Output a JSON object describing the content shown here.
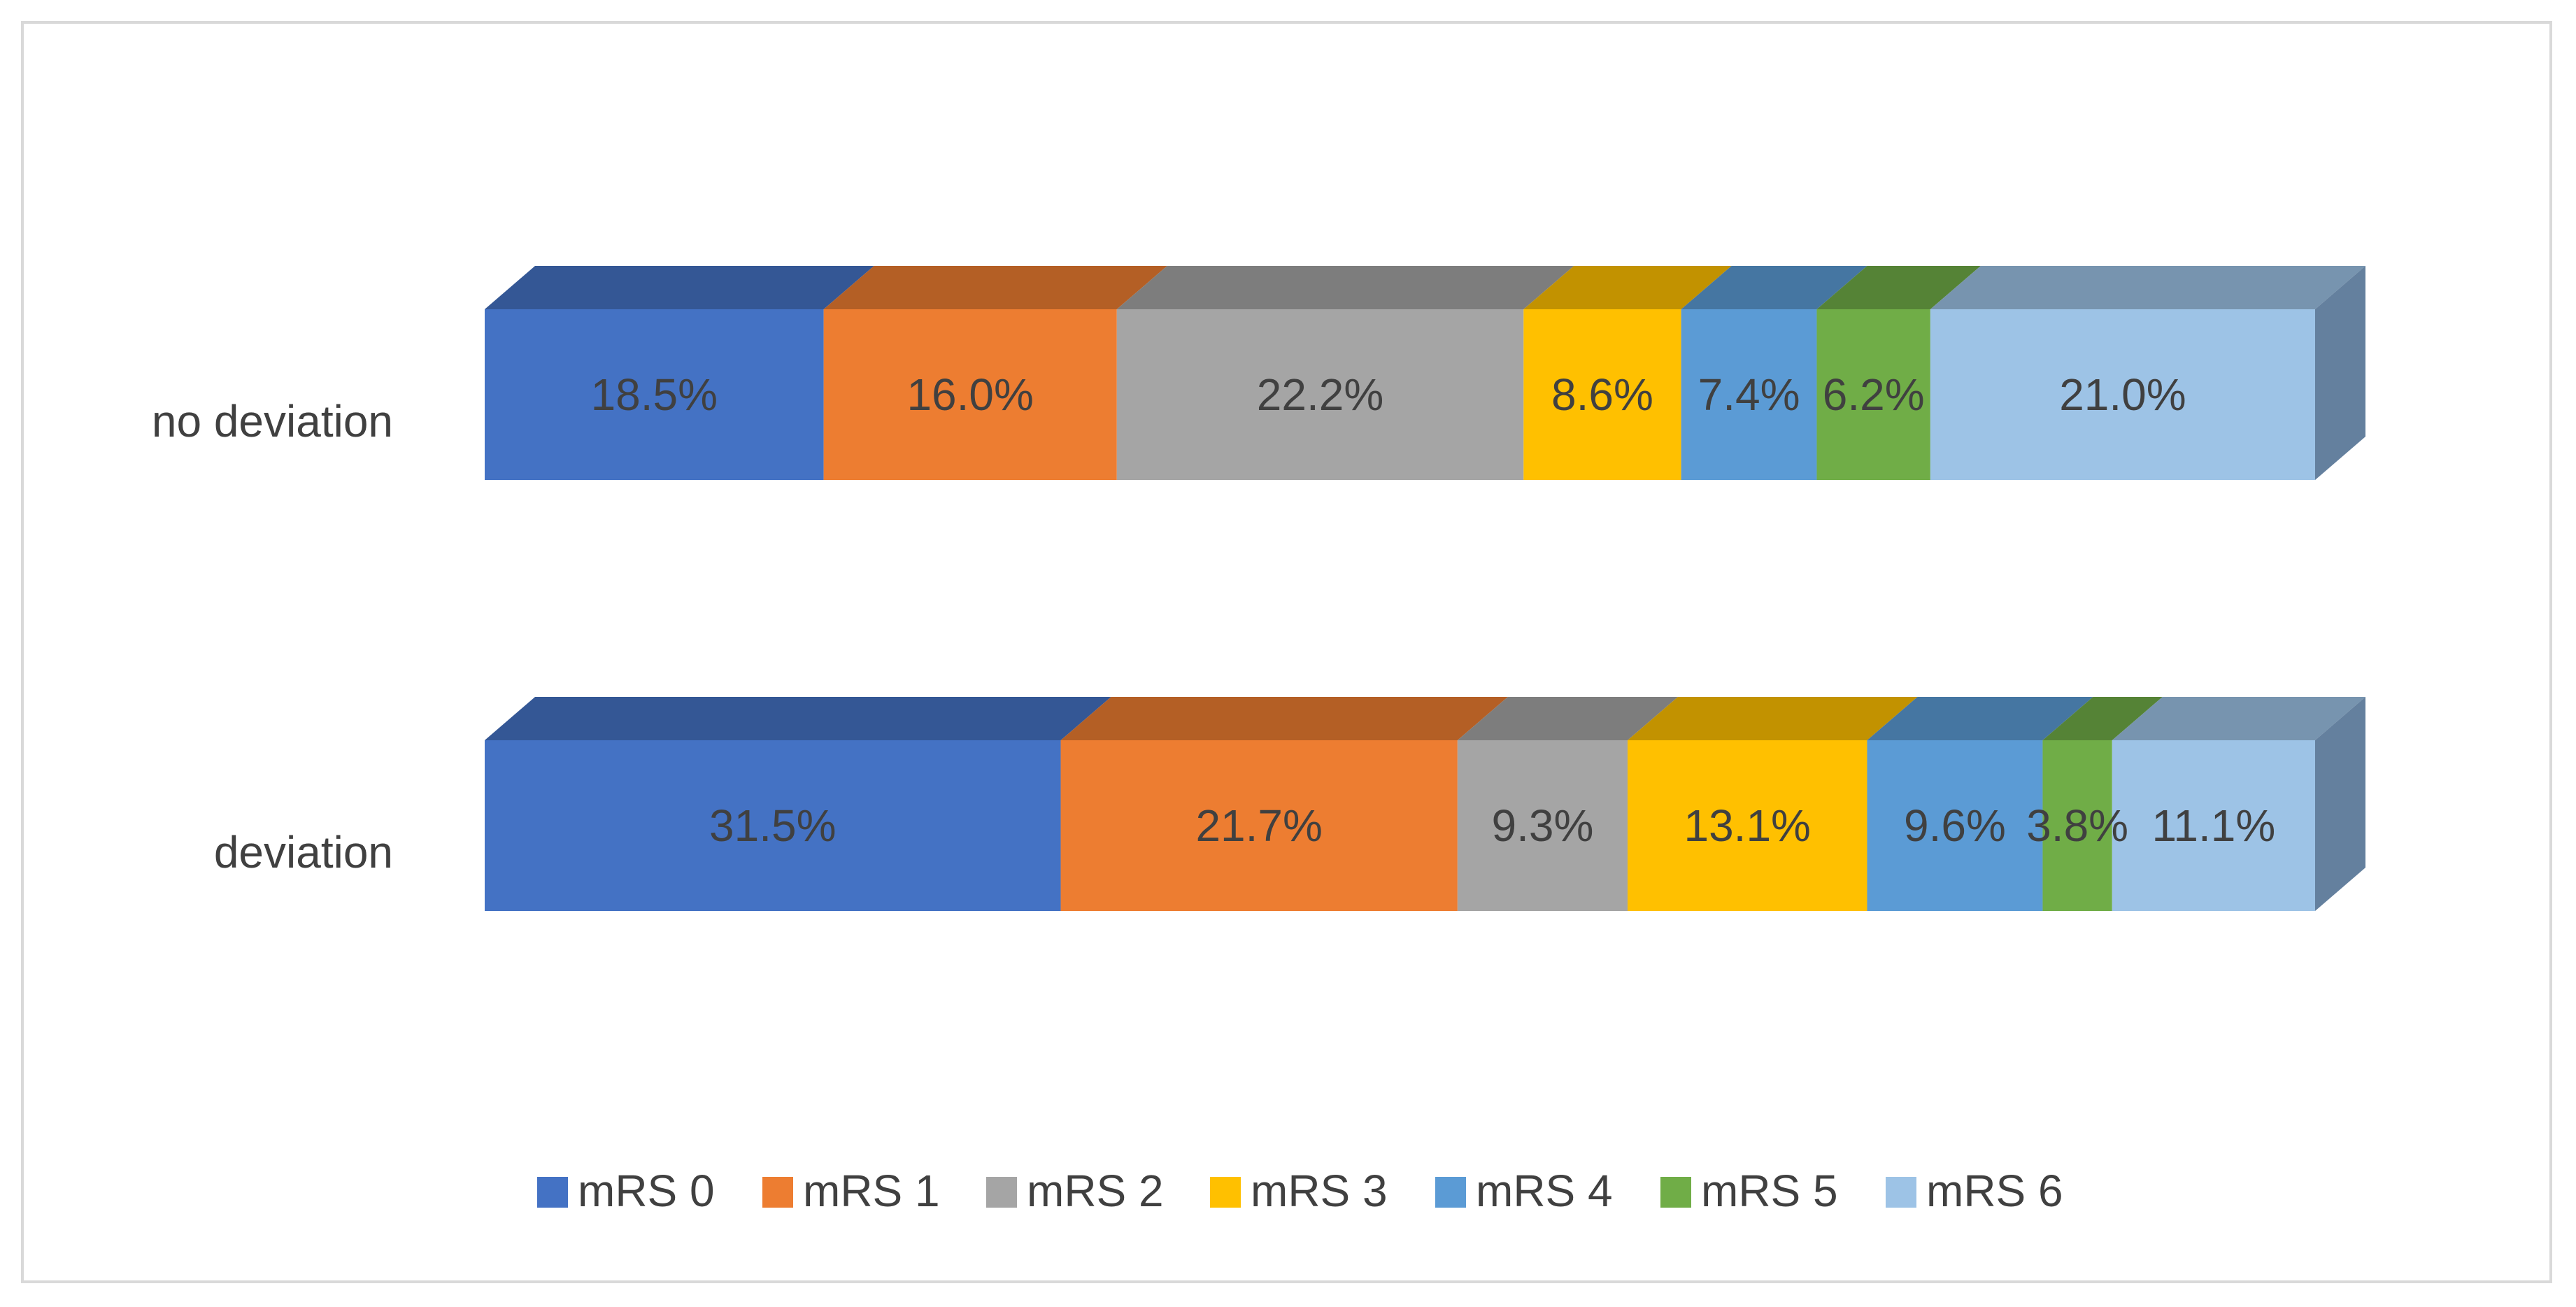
{
  "chart_data": {
    "type": "bar",
    "orientation": "horizontal",
    "stacked": "100%",
    "style": "3d",
    "categories": [
      "no deviation",
      "deviation"
    ],
    "series": [
      {
        "name": "mRS 0",
        "color": "#4472c4",
        "values": [
          18.5,
          31.5
        ]
      },
      {
        "name": "mRS 1",
        "color": "#ed7d31",
        "values": [
          16.0,
          21.7
        ]
      },
      {
        "name": "mRS 2",
        "color": "#a5a5a5",
        "values": [
          22.2,
          9.3
        ]
      },
      {
        "name": "mRS 3",
        "color": "#ffc000",
        "values": [
          8.6,
          13.1
        ]
      },
      {
        "name": "mRS 4",
        "color": "#5b9bd5",
        "values": [
          7.4,
          9.6
        ]
      },
      {
        "name": "mRS 5",
        "color": "#70ad47",
        "values": [
          6.2,
          3.8
        ]
      },
      {
        "name": "mRS 6",
        "color": "#9dc3e6",
        "values": [
          21.0,
          11.1
        ]
      }
    ],
    "data_labels": [
      [
        "18.5%",
        "16.0%",
        "22.2%",
        "8.6%",
        "7.4%",
        "6.2%",
        "21.0%"
      ],
      [
        "31.5%",
        "21.7%",
        "9.3%",
        "13.1%",
        "9.6%",
        "3.8%",
        "11.1%"
      ]
    ],
    "value_unit": "%",
    "xlim": [
      0,
      100
    ],
    "grid": false,
    "legend_position": "bottom",
    "title": "",
    "xlabel": "",
    "ylabel": ""
  }
}
